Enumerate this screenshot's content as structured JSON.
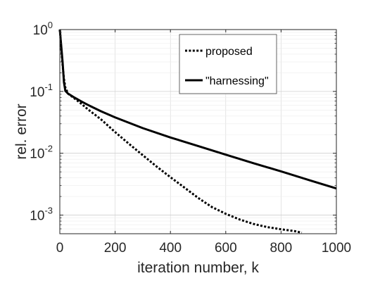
{
  "chart_data": {
    "type": "line",
    "title": "",
    "xlabel": "iteration number, k",
    "ylabel": "rel. error",
    "xlim": [
      0,
      1000
    ],
    "ylim": [
      0.0005,
      1
    ],
    "yscale": "log",
    "grid": true,
    "legend_position": "top-right",
    "x_ticks": [
      0,
      200,
      400,
      600,
      800,
      1000
    ],
    "x_tick_labels": [
      "0",
      "200",
      "400",
      "600",
      "800",
      "1000"
    ],
    "y_ticks": [
      {
        "value": 1,
        "base": "10",
        "exp": "0"
      },
      {
        "value": 0.1,
        "base": "10",
        "exp": "-1"
      },
      {
        "value": 0.01,
        "base": "10",
        "exp": "-2"
      },
      {
        "value": 0.001,
        "base": "10",
        "exp": "-3"
      }
    ],
    "series": [
      {
        "name": "proposed",
        "style": "dotted",
        "color": "#000000",
        "x": [
          0,
          5,
          10,
          15,
          20,
          30,
          40,
          60,
          80,
          100,
          150,
          200,
          250,
          300,
          350,
          400,
          450,
          500,
          550,
          600,
          650,
          700,
          750,
          800,
          850,
          875
        ],
        "y": [
          1.0,
          0.5,
          0.27,
          0.16,
          0.115,
          0.092,
          0.085,
          0.073,
          0.062,
          0.052,
          0.035,
          0.022,
          0.0142,
          0.0093,
          0.0061,
          0.0041,
          0.0028,
          0.0019,
          0.00135,
          0.00105,
          0.00085,
          0.00072,
          0.00064,
          0.00059,
          0.00055,
          0.00052
        ]
      },
      {
        "name": "\"harnessing\"",
        "style": "solid",
        "color": "#000000",
        "x": [
          0,
          5,
          10,
          15,
          20,
          30,
          50,
          80,
          100,
          150,
          200,
          300,
          400,
          500,
          600,
          700,
          800,
          900,
          1000
        ],
        "y": [
          1.0,
          0.55,
          0.3,
          0.14,
          0.102,
          0.092,
          0.081,
          0.068,
          0.061,
          0.0475,
          0.038,
          0.0255,
          0.018,
          0.0131,
          0.0095,
          0.0069,
          0.0051,
          0.0037,
          0.0027
        ]
      }
    ]
  }
}
